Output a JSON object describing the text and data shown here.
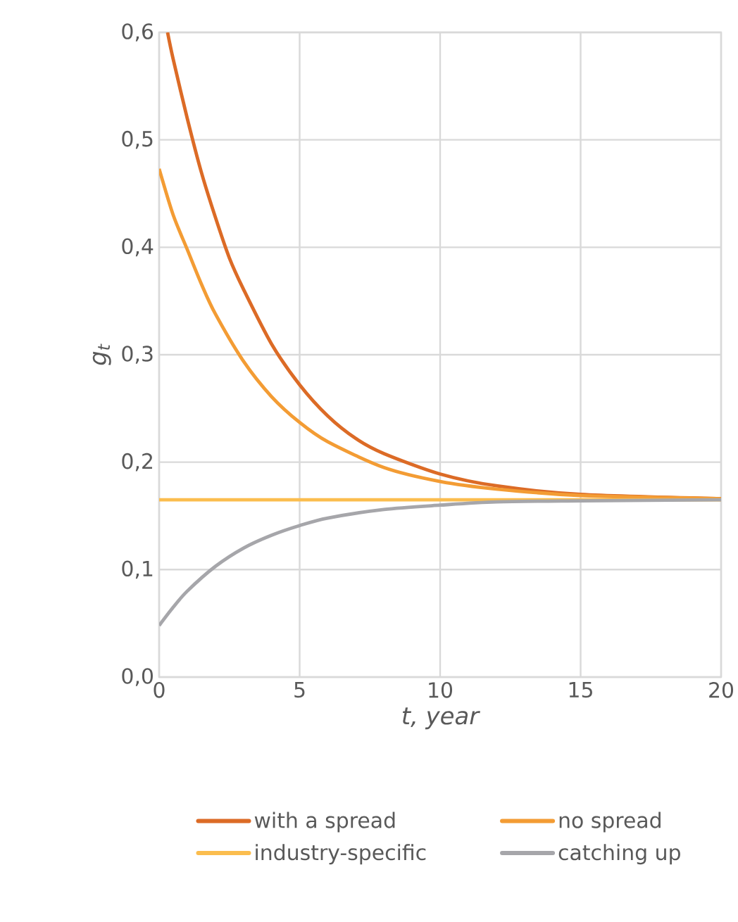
{
  "chart_data": {
    "type": "line",
    "xlabel": "t, year",
    "ylabel": "g$_{t}$",
    "xlim": [
      0,
      20
    ],
    "ylim": [
      0,
      0.6
    ],
    "xticks": [
      0,
      5,
      10,
      15,
      20
    ],
    "yticks": [
      {
        "value": 0,
        "label": "0,0"
      },
      {
        "value": 0.1,
        "label": "0,1"
      },
      {
        "value": 0.2,
        "label": "0,2"
      },
      {
        "value": 0.3,
        "label": "0,3"
      },
      {
        "value": 0.4,
        "label": "0,4"
      },
      {
        "value": 0.5,
        "label": "0,5"
      },
      {
        "value": 0.6,
        "label": "0,6"
      }
    ],
    "grid": true,
    "legend": "bottom",
    "marker": "none",
    "line_style": "solid",
    "series": [
      {
        "name": "with a spread",
        "color": "#dc6b26",
        "x": [
          0.3,
          0.5,
          1,
          1.5,
          2,
          2.5,
          3,
          4,
          5,
          6,
          7,
          8,
          10,
          12,
          15,
          20
        ],
        "values": [
          0.6,
          0.575,
          0.52,
          0.47,
          0.428,
          0.39,
          0.361,
          0.31,
          0.272,
          0.243,
          0.222,
          0.208,
          0.189,
          0.178,
          0.17,
          0.166
        ]
      },
      {
        "name": "no spread",
        "color": "#f39c34",
        "x": [
          0,
          0.5,
          1,
          1.5,
          2,
          3,
          4,
          5,
          6,
          8,
          10,
          12,
          15,
          20
        ],
        "values": [
          0.473,
          0.43,
          0.398,
          0.366,
          0.338,
          0.294,
          0.261,
          0.237,
          0.219,
          0.195,
          0.182,
          0.175,
          0.169,
          0.166
        ]
      },
      {
        "name": "industry-specific",
        "color": "#fbbd4e",
        "x": [
          0,
          20
        ],
        "values": [
          0.165,
          0.165
        ]
      },
      {
        "name": "catching up",
        "color": "#a6a6aa",
        "x": [
          0,
          0.5,
          1,
          2,
          3,
          4,
          5,
          6,
          8,
          10,
          12,
          15,
          20
        ],
        "values": [
          0.048,
          0.065,
          0.08,
          0.103,
          0.12,
          0.132,
          0.141,
          0.148,
          0.156,
          0.16,
          0.163,
          0.164,
          0.165
        ]
      }
    ]
  }
}
